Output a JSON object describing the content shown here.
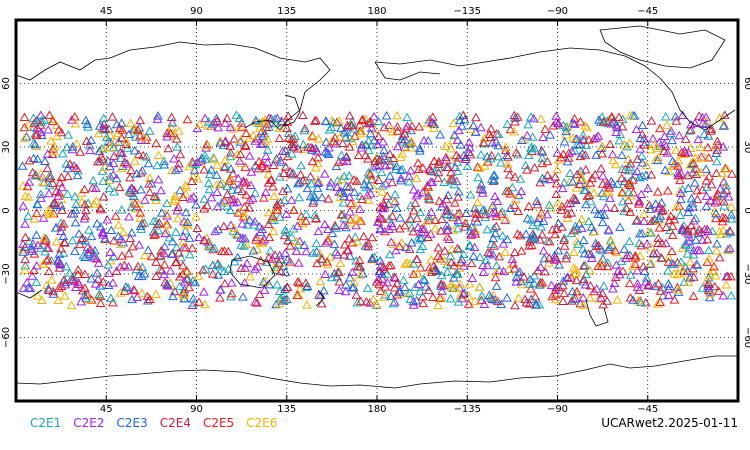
{
  "map": {
    "projection": "equirectangular",
    "lon_center": 180,
    "lon_range": [
      0,
      360
    ],
    "lat_range": [
      -90,
      90
    ],
    "grid": "dotted",
    "lon_ticks": [
      45,
      90,
      135,
      180,
      225,
      270,
      315
    ],
    "lon_tick_labels": [
      "45",
      "90",
      "135",
      "180",
      "−135",
      "−90",
      "−45"
    ],
    "lat_ticks": [
      60,
      30,
      0,
      -30,
      -60
    ],
    "lat_tick_labels": [
      "60",
      "30",
      "0",
      "−30",
      "−60"
    ],
    "observation_band_lat": [
      -45,
      45
    ],
    "marker": "open-triangle"
  },
  "legend": [
    {
      "name": "C2E1",
      "color": "#17a7b8"
    },
    {
      "name": "C2E2",
      "color": "#a020f0"
    },
    {
      "name": "C2E3",
      "color": "#1e64dc"
    },
    {
      "name": "C2E4",
      "color": "#c81e3c"
    },
    {
      "name": "C2E5",
      "color": "#ee1a1a"
    },
    {
      "name": "C2E6",
      "color": "#f4b400"
    }
  ],
  "footer": {
    "title": "UCARwet2.2025-01-11"
  }
}
